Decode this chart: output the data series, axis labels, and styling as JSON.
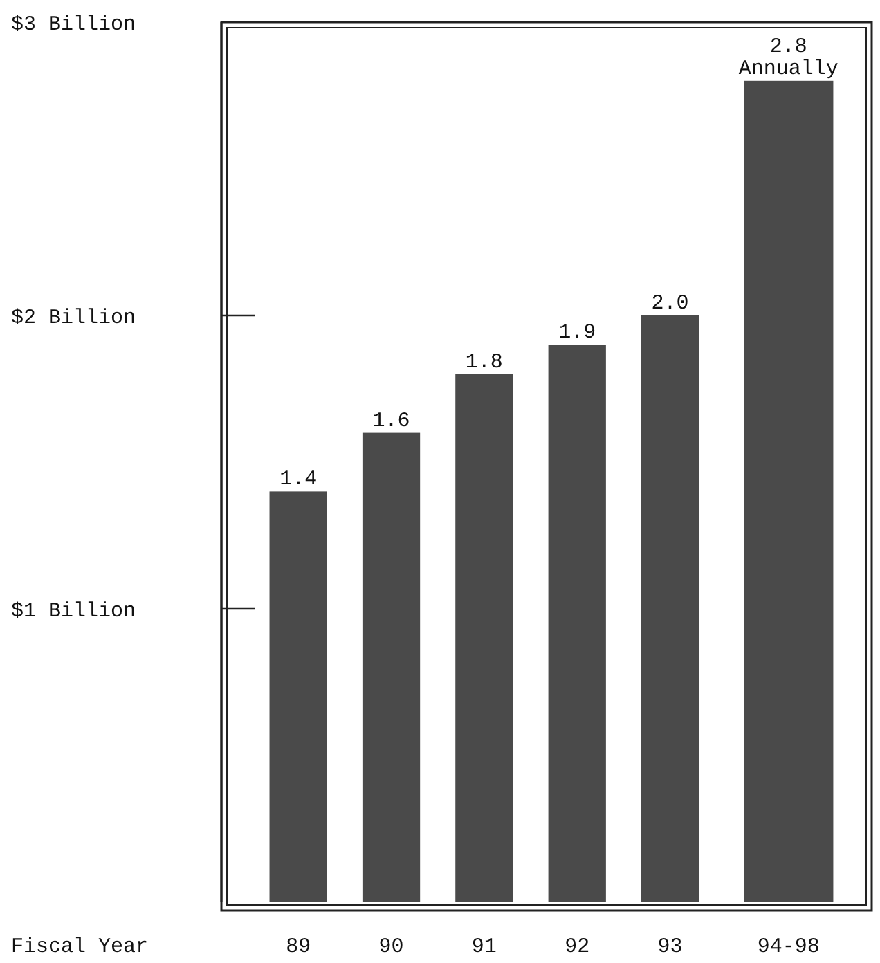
{
  "chart_data": {
    "type": "bar",
    "xlabel": "Fiscal Year",
    "categories": [
      "89",
      "90",
      "91",
      "92",
      "93",
      "94-98"
    ],
    "values": [
      1.4,
      1.6,
      1.8,
      1.9,
      2.0,
      2.8
    ],
    "color": "#4a4a4a",
    "value_labels": [
      "1.4",
      "1.6",
      "1.8",
      "1.9",
      "2.0",
      "2.8\nAnnually"
    ],
    "ylim": [
      0,
      3
    ],
    "yticks": [
      {
        "value": 1,
        "label": "$1 Billion"
      },
      {
        "value": 2,
        "label": "$2 Billion"
      },
      {
        "value": 3,
        "label": "$3 Billion"
      }
    ],
    "grid": false
  }
}
